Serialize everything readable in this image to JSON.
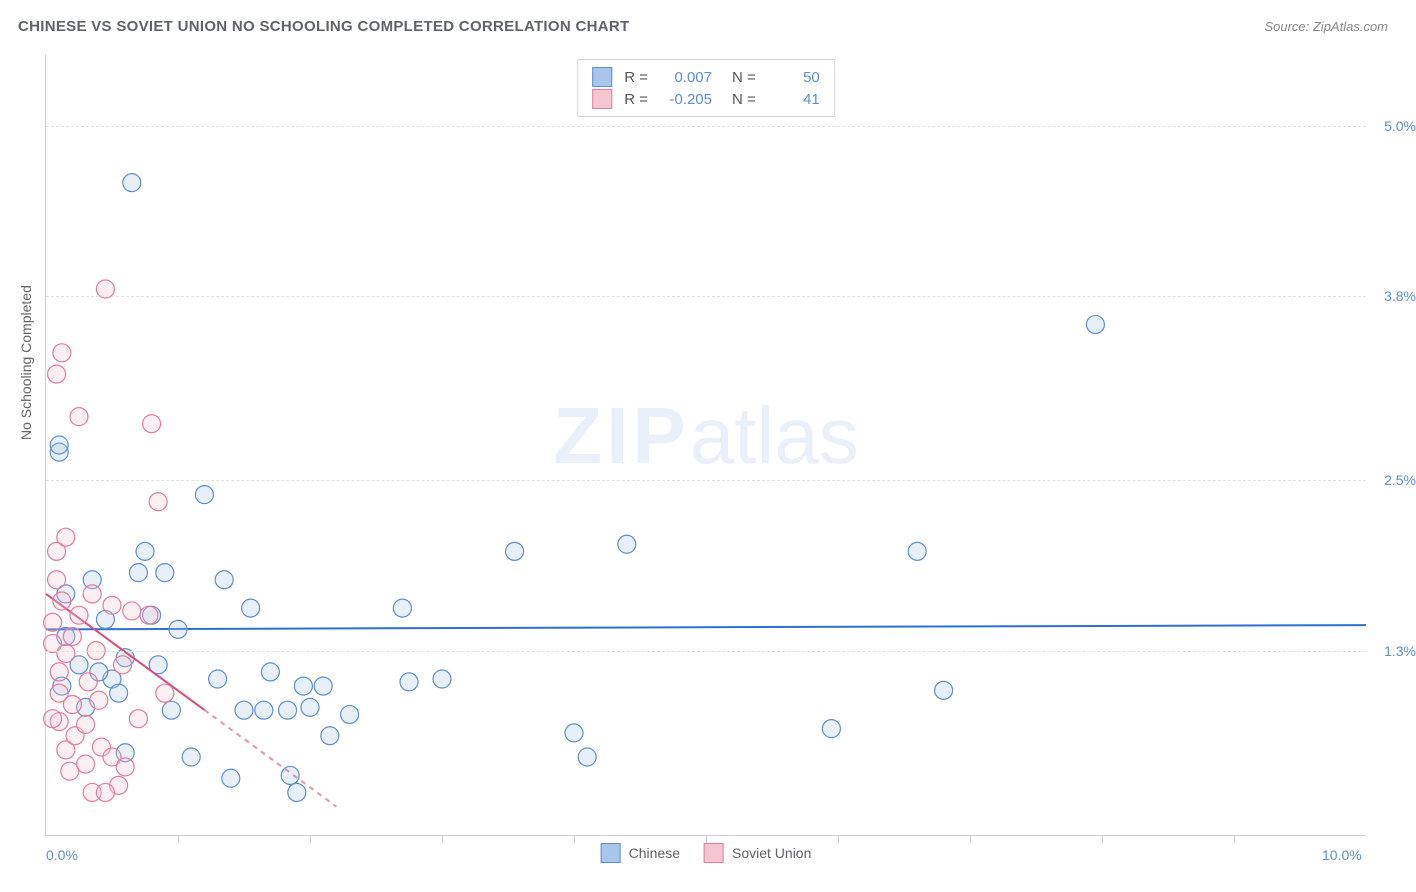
{
  "title": "CHINESE VS SOVIET UNION NO SCHOOLING COMPLETED CORRELATION CHART",
  "source": "Source: ZipAtlas.com",
  "y_axis_title": "No Schooling Completed",
  "watermark_bold": "ZIP",
  "watermark_light": "atlas",
  "chart": {
    "type": "scatter",
    "background_color": "#ffffff",
    "grid_color": "#e0e0e0",
    "axis_color": "#d0d0d0",
    "tick_color": "#cccccc",
    "label_color": "#5b8dd6",
    "title_color": "#5f6368",
    "title_fontsize": 15,
    "label_fontsize": 14,
    "xlim": [
      0,
      10
    ],
    "ylim": [
      0,
      5.5
    ],
    "x_labels": [
      {
        "value": 0,
        "text": "0.0%"
      },
      {
        "value": 10,
        "text": "10.0%"
      }
    ],
    "x_ticks": [
      1,
      2,
      3,
      4,
      5,
      6,
      7,
      8,
      9
    ],
    "y_gridlines": [
      {
        "value": 1.3,
        "text": "1.3%"
      },
      {
        "value": 2.5,
        "text": "2.5%"
      },
      {
        "value": 3.8,
        "text": "3.8%"
      },
      {
        "value": 5.0,
        "text": "5.0%"
      }
    ],
    "marker_radius": 9,
    "marker_stroke_width": 1.2,
    "marker_fill_opacity": 0.28,
    "trend_line_width": 2
  },
  "series": [
    {
      "name": "Chinese",
      "color_fill": "#a9c6ea",
      "color_stroke": "#5b8dd6",
      "trend_color": "#2f6fd0",
      "R": "0.007",
      "N": "50",
      "trend_y1": 1.45,
      "trend_y2": 1.48,
      "trend_x1": 0,
      "trend_x2": 10,
      "trend_dashed_after": 10,
      "points": [
        [
          0.15,
          1.4
        ],
        [
          0.15,
          1.7
        ],
        [
          0.1,
          2.7
        ],
        [
          0.1,
          2.75
        ],
        [
          0.65,
          4.6
        ],
        [
          0.35,
          1.8
        ],
        [
          0.45,
          1.52
        ],
        [
          0.5,
          1.1
        ],
        [
          0.6,
          1.25
        ],
        [
          0.6,
          0.58
        ],
        [
          0.7,
          1.85
        ],
        [
          0.75,
          2.0
        ],
        [
          0.8,
          1.55
        ],
        [
          0.85,
          1.2
        ],
        [
          0.9,
          1.85
        ],
        [
          0.95,
          0.88
        ],
        [
          1.0,
          1.45
        ],
        [
          1.1,
          0.55
        ],
        [
          1.2,
          2.4
        ],
        [
          1.3,
          1.1
        ],
        [
          1.35,
          1.8
        ],
        [
          1.4,
          0.4
        ],
        [
          1.5,
          0.88
        ],
        [
          1.55,
          1.6
        ],
        [
          1.65,
          0.88
        ],
        [
          1.7,
          1.15
        ],
        [
          1.83,
          0.88
        ],
        [
          1.85,
          0.42
        ],
        [
          1.9,
          0.3
        ],
        [
          1.95,
          1.05
        ],
        [
          2.0,
          0.9
        ],
        [
          2.1,
          1.05
        ],
        [
          2.15,
          0.7
        ],
        [
          2.3,
          0.85
        ],
        [
          2.7,
          1.6
        ],
        [
          2.75,
          1.08
        ],
        [
          3.0,
          1.1
        ],
        [
          3.55,
          2.0
        ],
        [
          4.0,
          0.72
        ],
        [
          4.1,
          0.55
        ],
        [
          4.4,
          2.05
        ],
        [
          5.95,
          0.75
        ],
        [
          6.6,
          2.0
        ],
        [
          6.8,
          1.02
        ],
        [
          7.95,
          3.6
        ],
        [
          0.3,
          0.9
        ],
        [
          0.4,
          1.15
        ],
        [
          0.55,
          1.0
        ],
        [
          0.25,
          1.2
        ],
        [
          0.12,
          1.05
        ]
      ]
    },
    {
      "name": "Soviet Union",
      "color_fill": "#f5c6d2",
      "color_stroke": "#e67a9a",
      "trend_color": "#d94c78",
      "R": "-0.205",
      "N": "41",
      "trend_y1": 1.7,
      "trend_y2": 0.2,
      "trend_x1": 0,
      "trend_x2": 2.2,
      "trend_dashed_after": 1.2,
      "points": [
        [
          0.05,
          1.35
        ],
        [
          0.05,
          1.5
        ],
        [
          0.08,
          1.8
        ],
        [
          0.08,
          2.0
        ],
        [
          0.1,
          0.8
        ],
        [
          0.1,
          1.0
        ],
        [
          0.1,
          1.15
        ],
        [
          0.12,
          1.65
        ],
        [
          0.15,
          0.6
        ],
        [
          0.15,
          1.28
        ],
        [
          0.18,
          0.45
        ],
        [
          0.2,
          0.92
        ],
        [
          0.2,
          1.4
        ],
        [
          0.22,
          0.7
        ],
        [
          0.25,
          2.95
        ],
        [
          0.25,
          1.55
        ],
        [
          0.3,
          0.5
        ],
        [
          0.3,
          0.78
        ],
        [
          0.32,
          1.08
        ],
        [
          0.35,
          1.7
        ],
        [
          0.35,
          0.3
        ],
        [
          0.38,
          1.3
        ],
        [
          0.4,
          0.95
        ],
        [
          0.42,
          0.62
        ],
        [
          0.45,
          3.85
        ],
        [
          0.5,
          1.62
        ],
        [
          0.5,
          0.55
        ],
        [
          0.55,
          0.35
        ],
        [
          0.58,
          1.2
        ],
        [
          0.6,
          0.48
        ],
        [
          0.08,
          3.25
        ],
        [
          0.12,
          3.4
        ],
        [
          0.65,
          1.58
        ],
        [
          0.7,
          0.82
        ],
        [
          0.8,
          2.9
        ],
        [
          0.78,
          1.55
        ],
        [
          0.85,
          2.35
        ],
        [
          0.45,
          0.3
        ],
        [
          0.9,
          1.0
        ],
        [
          0.15,
          2.1
        ],
        [
          0.05,
          0.82
        ]
      ]
    }
  ],
  "legend_bottom": [
    {
      "label": "Chinese",
      "fill": "#a9c6ea",
      "stroke": "#5b8dd6"
    },
    {
      "label": "Soviet Union",
      "fill": "#f5c6d2",
      "stroke": "#e67a9a"
    }
  ]
}
